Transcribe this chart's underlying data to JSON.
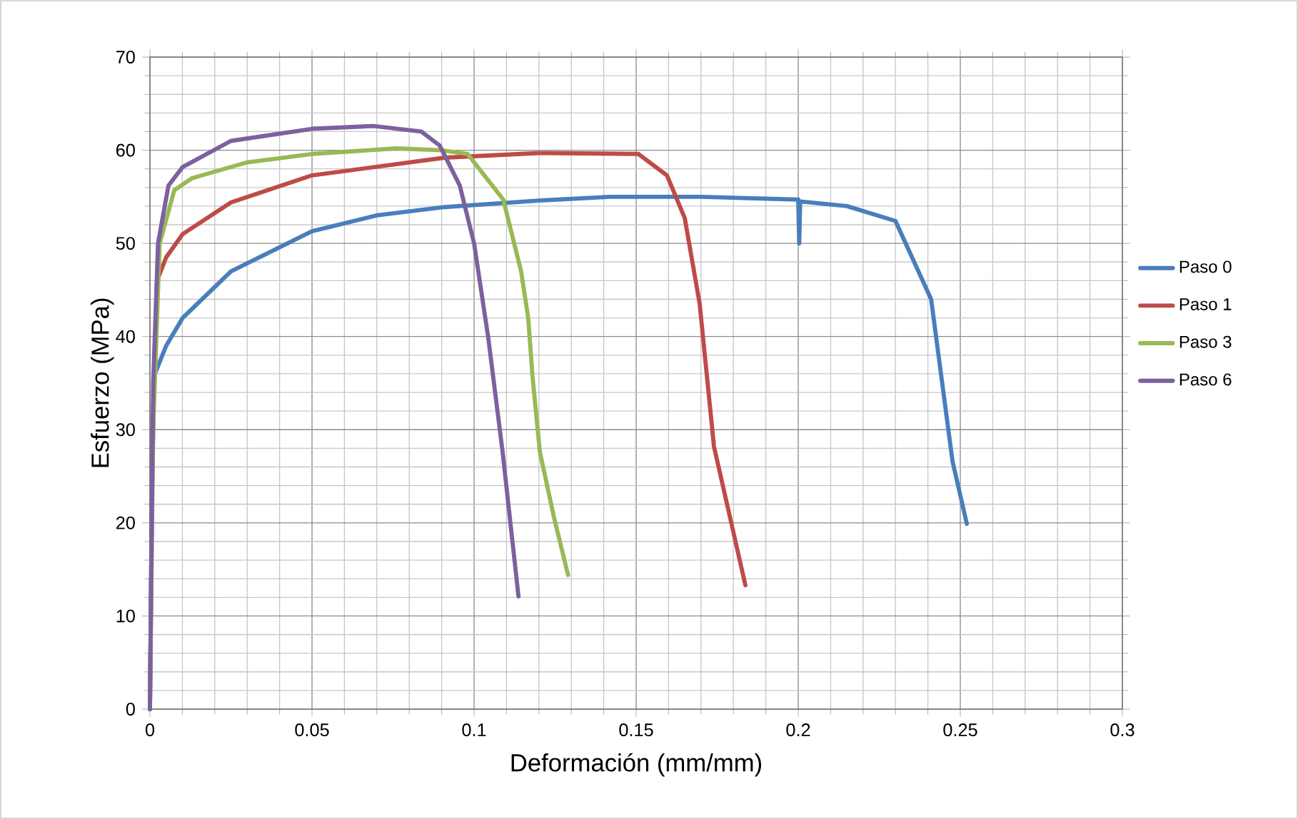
{
  "chart_data": {
    "type": "line",
    "xlabel": "Deformación (mm/mm)",
    "ylabel": "Esfuerzo (MPa)",
    "xlim": [
      0,
      0.3
    ],
    "xticks": [
      0,
      0.05,
      0.1,
      0.15,
      0.2,
      0.25,
      0.3
    ],
    "ylim": [
      0,
      70
    ],
    "yticks": [
      0,
      10,
      20,
      30,
      40,
      50,
      60,
      70
    ],
    "grid": true,
    "legend": "right",
    "marker": "none",
    "line_style": "solid",
    "series": [
      {
        "name": "Paso 0",
        "color": "#4a7ebb",
        "x": [
          0,
          0.0005,
          0.0013,
          0.005,
          0.0101,
          0.025,
          0.05,
          0.07,
          0.091,
          0.12,
          0.142,
          0.17,
          0.2,
          0.2003,
          0.2006,
          0.215,
          0.23,
          0.241,
          0.2476,
          0.252
        ],
        "values": [
          0,
          20,
          35.8,
          39,
          42,
          47,
          51.3,
          53,
          53.9,
          54.6,
          55,
          55,
          54.7,
          50,
          54.5,
          54,
          52.4,
          44,
          26.6,
          19.9
        ]
      },
      {
        "name": "Paso 1",
        "color": "#be4b48",
        "x": [
          0,
          0.0008,
          0.0022,
          0.005,
          0.0101,
          0.025,
          0.05,
          0.091,
          0.12,
          0.1507,
          0.1595,
          0.165,
          0.1696,
          0.174,
          0.1837
        ],
        "values": [
          0,
          30,
          46,
          48.5,
          51,
          54.4,
          57.3,
          59.2,
          59.7,
          59.6,
          57.3,
          52.7,
          43.5,
          28.2,
          13.3
        ]
      },
      {
        "name": "Paso 3",
        "color": "#98b954",
        "x": [
          0,
          0.001,
          0.003,
          0.0075,
          0.013,
          0.03,
          0.05,
          0.076,
          0.09,
          0.098,
          0.109,
          0.1145,
          0.1167,
          0.118,
          0.1203,
          0.1247,
          0.129
        ],
        "values": [
          0,
          30,
          50,
          55.7,
          57,
          58.7,
          59.6,
          60.2,
          60,
          59.6,
          54.7,
          47,
          42,
          35.8,
          27.6,
          20.5,
          14.4
        ]
      },
      {
        "name": "Paso 6",
        "color": "#7d60a0",
        "x": [
          0,
          0.001,
          0.0025,
          0.0057,
          0.0101,
          0.025,
          0.05,
          0.069,
          0.0837,
          0.0894,
          0.0956,
          0.1,
          0.1044,
          0.1088,
          0.1137
        ],
        "values": [
          0,
          35,
          50,
          56.2,
          58.2,
          61,
          62.3,
          62.6,
          62,
          60.5,
          56.2,
          50,
          39.8,
          27.6,
          12.1
        ]
      }
    ]
  }
}
